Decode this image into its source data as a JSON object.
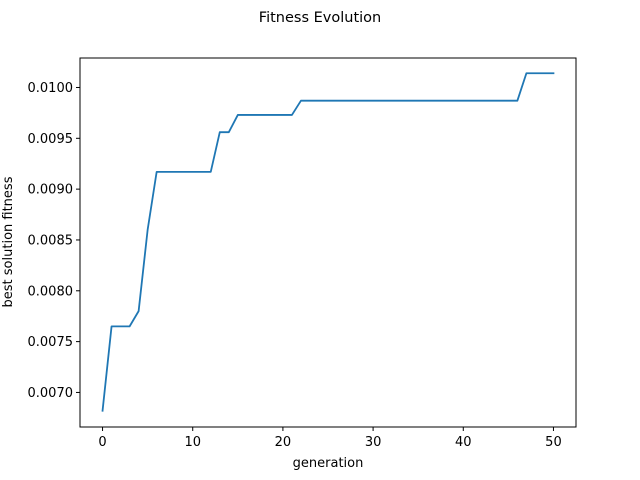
{
  "chart_data": {
    "type": "line",
    "title": "Fitness Evolution",
    "xlabel": "generation",
    "ylabel": "best solution fitness",
    "xlim": [
      -2.5,
      52.5
    ],
    "ylim": [
      0.00666,
      0.01029
    ],
    "xticks": [
      0,
      10,
      20,
      30,
      40,
      50
    ],
    "xtick_labels": [
      "0",
      "10",
      "20",
      "30",
      "40",
      "50"
    ],
    "yticks": [
      0.007,
      0.0075,
      0.008,
      0.0085,
      0.009,
      0.0095,
      0.01
    ],
    "ytick_labels": [
      "0.0070",
      "0.0075",
      "0.0080",
      "0.0085",
      "0.0090",
      "0.0095",
      "0.0100"
    ],
    "grid": false,
    "series": [
      {
        "color": "#1f77b4",
        "x": [
          0,
          1,
          2,
          3,
          4,
          5,
          6,
          7,
          8,
          9,
          10,
          11,
          12,
          13,
          14,
          15,
          16,
          17,
          18,
          19,
          20,
          21,
          22,
          23,
          24,
          25,
          26,
          27,
          28,
          29,
          30,
          31,
          32,
          33,
          34,
          35,
          36,
          37,
          38,
          39,
          40,
          41,
          42,
          43,
          44,
          45,
          46,
          47,
          48,
          49,
          50
        ],
        "y": [
          0.00682,
          0.00765,
          0.00765,
          0.00765,
          0.0078,
          0.0086,
          0.00917,
          0.00917,
          0.00917,
          0.00917,
          0.00917,
          0.00917,
          0.00917,
          0.00956,
          0.00956,
          0.00973,
          0.00973,
          0.00973,
          0.00973,
          0.00973,
          0.00973,
          0.00973,
          0.00987,
          0.00987,
          0.00987,
          0.00987,
          0.00987,
          0.00987,
          0.00987,
          0.00987,
          0.00987,
          0.00987,
          0.00987,
          0.00987,
          0.00987,
          0.00987,
          0.00987,
          0.00987,
          0.00987,
          0.00987,
          0.00987,
          0.00987,
          0.00987,
          0.00987,
          0.00987,
          0.00987,
          0.00987,
          0.01014,
          0.01014,
          0.01014,
          0.01014
        ]
      }
    ]
  }
}
